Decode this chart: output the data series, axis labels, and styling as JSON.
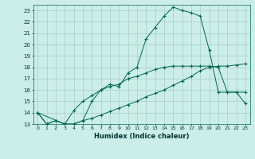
{
  "xlabel": "Humidex (Indice chaleur)",
  "bg_color": "#cceee8",
  "grid_color": "#aacccc",
  "line_color": "#006655",
  "xlim": [
    -0.5,
    23.5
  ],
  "ylim": [
    13,
    23.5
  ],
  "yticks": [
    13,
    14,
    15,
    16,
    17,
    18,
    19,
    20,
    21,
    22,
    23
  ],
  "xticks": [
    0,
    1,
    2,
    3,
    4,
    5,
    6,
    7,
    8,
    9,
    10,
    11,
    12,
    13,
    14,
    15,
    16,
    17,
    18,
    19,
    20,
    21,
    22,
    23
  ],
  "series1_x": [
    0,
    1,
    2,
    3,
    4,
    5,
    6,
    7,
    8,
    9,
    10,
    11,
    12,
    13,
    14,
    15,
    16,
    17,
    18,
    19,
    20,
    21,
    22,
    23
  ],
  "series1_y": [
    14,
    13,
    13.3,
    13,
    13,
    13.3,
    15,
    16,
    16.5,
    16.3,
    17.5,
    18,
    20.5,
    21.5,
    22.5,
    23.3,
    23,
    22.8,
    22.5,
    19.5,
    15.8,
    15.8,
    15.8,
    15.8
  ],
  "series2_x": [
    0,
    1,
    2,
    3,
    4,
    5,
    6,
    7,
    8,
    9,
    10,
    11,
    12,
    13,
    14,
    15,
    16,
    17,
    18,
    19,
    20,
    21,
    22,
    23
  ],
  "series2_y": [
    14,
    13,
    13.3,
    13,
    13,
    13.3,
    13.5,
    13.8,
    14.1,
    14.4,
    14.7,
    15.0,
    15.4,
    15.7,
    16.0,
    16.4,
    16.8,
    17.2,
    17.7,
    18.0,
    18.1,
    18.1,
    18.2,
    18.3
  ],
  "series3_x": [
    0,
    3,
    4,
    5,
    6,
    7,
    8,
    9,
    10,
    11,
    12,
    13,
    14,
    15,
    16,
    17,
    18,
    19,
    20,
    21,
    22,
    23
  ],
  "series3_y": [
    14,
    13,
    14.2,
    15,
    15.5,
    16,
    16.3,
    16.5,
    17.0,
    17.2,
    17.5,
    17.8,
    18.0,
    18.1,
    18.1,
    18.1,
    18.1,
    18.1,
    18.0,
    15.8,
    15.8,
    14.8
  ]
}
